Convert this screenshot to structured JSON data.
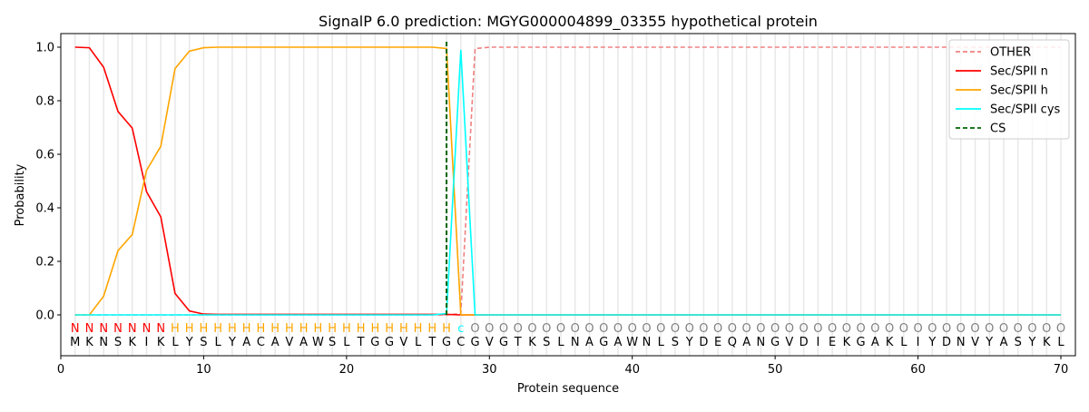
{
  "chart_data": {
    "type": "line",
    "title": "SignalP 6.0 prediction: MGYG000004899_03355 hypothetical protein",
    "xlabel": "Protein sequence",
    "ylabel": "Probability",
    "xlim": [
      0,
      71
    ],
    "ylim": [
      -0.15,
      1.05
    ],
    "xticks": [
      0,
      10,
      20,
      30,
      40,
      50,
      60,
      70
    ],
    "yticks": [
      "0.0",
      "0.2",
      "0.4",
      "0.6",
      "0.8",
      "1.0"
    ],
    "grid": "vertical lines at each residue",
    "legend_position": "top-right",
    "sequence": [
      "M",
      "K",
      "N",
      "S",
      "K",
      "I",
      "K",
      "L",
      "Y",
      "S",
      "L",
      "Y",
      "A",
      "C",
      "A",
      "V",
      "A",
      "W",
      "S",
      "L",
      "T",
      "G",
      "G",
      "V",
      "L",
      "T",
      "G",
      "C",
      "G",
      "V",
      "G",
      "T",
      "K",
      "S",
      "L",
      "N",
      "A",
      "G",
      "A",
      "W",
      "N",
      "L",
      "S",
      "Y",
      "D",
      "E",
      "Q",
      "A",
      "N",
      "G",
      "V",
      "D",
      "I",
      "E",
      "K",
      "G",
      "A",
      "K",
      "L",
      "I",
      "Y",
      "D",
      "N",
      "V",
      "Y",
      "A",
      "S",
      "Y",
      "K",
      "L"
    ],
    "region_labels": "NNNNNNNHHHHHHHHHHHHHHHHHHHHcOOOOOOOOOOOOOOOOOOOOOOOOOOOOOOOOOOOOOOOOOO",
    "label_colors": {
      "N": "#ff0000",
      "H": "#ffa500",
      "c": "#00ffff",
      "O": "#808080"
    },
    "series": [
      {
        "name": "OTHER",
        "color": "#f08080",
        "dash": true,
        "values": [
          0,
          0,
          0,
          0,
          0,
          0,
          0,
          0,
          0,
          0,
          0,
          0,
          0,
          0,
          0,
          0,
          0,
          0,
          0,
          0,
          0,
          0,
          0,
          0,
          0,
          0,
          0,
          0.005,
          0.995,
          1,
          1,
          1,
          1,
          1,
          1,
          1,
          1,
          1,
          1,
          1,
          1,
          1,
          1,
          1,
          1,
          1,
          1,
          1,
          1,
          1,
          1,
          1,
          1,
          1,
          1,
          1,
          1,
          1,
          1,
          1,
          1,
          1,
          1,
          1,
          1,
          1,
          1,
          1,
          1,
          1
        ]
      },
      {
        "name": "Sec/SPII n",
        "color": "#ff0000",
        "dash": false,
        "values": [
          1.0,
          0.998,
          0.925,
          0.76,
          0.698,
          0.46,
          0.366,
          0.08,
          0.015,
          0.003,
          0.002,
          0.002,
          0.002,
          0.002,
          0.002,
          0.002,
          0.002,
          0.002,
          0.002,
          0.002,
          0.002,
          0.002,
          0.002,
          0.002,
          0.002,
          0.002,
          0.002,
          0,
          0,
          0,
          0,
          0,
          0,
          0,
          0,
          0,
          0,
          0,
          0,
          0,
          0,
          0,
          0,
          0,
          0,
          0,
          0,
          0,
          0,
          0,
          0,
          0,
          0,
          0,
          0,
          0,
          0,
          0,
          0,
          0,
          0,
          0,
          0,
          0,
          0,
          0,
          0,
          0,
          0,
          0
        ]
      },
      {
        "name": "Sec/SPII h",
        "color": "#ffa500",
        "dash": false,
        "values": [
          0,
          0,
          0.07,
          0.24,
          0.3,
          0.54,
          0.63,
          0.92,
          0.985,
          0.998,
          1,
          1,
          1,
          1,
          1,
          1,
          1,
          1,
          1,
          1,
          1,
          1,
          1,
          1,
          1,
          1,
          0.995,
          0,
          0,
          0,
          0,
          0,
          0,
          0,
          0,
          0,
          0,
          0,
          0,
          0,
          0,
          0,
          0,
          0,
          0,
          0,
          0,
          0,
          0,
          0,
          0,
          0,
          0,
          0,
          0,
          0,
          0,
          0,
          0,
          0,
          0,
          0,
          0,
          0,
          0,
          0,
          0,
          0,
          0,
          0
        ]
      },
      {
        "name": "Sec/SPII cys",
        "color": "#00ffff",
        "dash": false,
        "values": [
          0,
          0,
          0,
          0,
          0,
          0,
          0,
          0,
          0,
          0,
          0,
          0,
          0,
          0,
          0,
          0,
          0,
          0,
          0,
          0,
          0,
          0,
          0,
          0,
          0,
          0,
          0.005,
          0.99,
          0,
          0,
          0,
          0,
          0,
          0,
          0,
          0,
          0,
          0,
          0,
          0,
          0,
          0,
          0,
          0,
          0,
          0,
          0,
          0,
          0,
          0,
          0,
          0,
          0,
          0,
          0,
          0,
          0,
          0,
          0,
          0,
          0,
          0,
          0,
          0,
          0,
          0,
          0,
          0,
          0,
          0
        ]
      },
      {
        "name": "CS",
        "color": "#006400",
        "dash": true,
        "vertical_at": 27,
        "range": [
          0,
          1.03
        ]
      }
    ]
  }
}
